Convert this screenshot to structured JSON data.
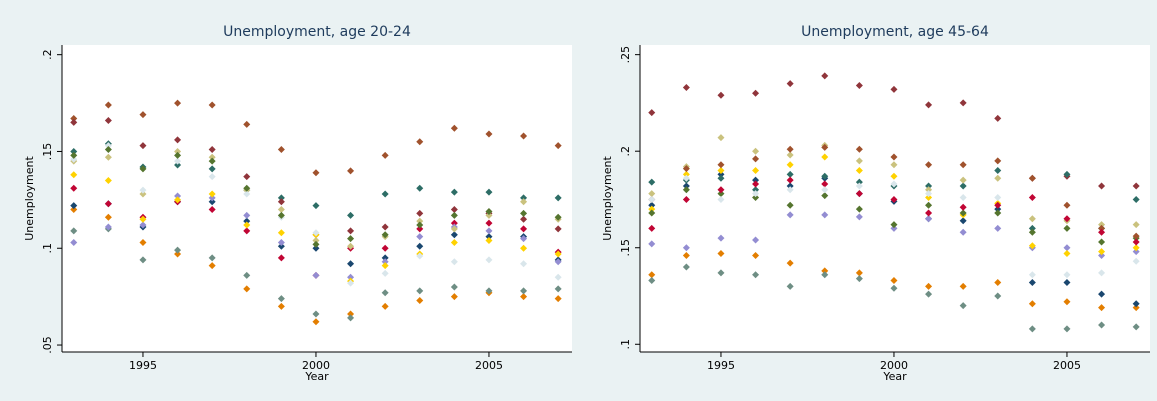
{
  "chart_data": [
    {
      "type": "scatter",
      "title": "Unemployment, age 20-24",
      "x_label": "Year",
      "y_label": "Unemployment",
      "x": [
        1993,
        1994,
        1995,
        1996,
        1997,
        1998,
        1999,
        2000,
        2001,
        2002,
        2003,
        2004,
        2005,
        2006,
        2007
      ],
      "xlim": [
        1992.66,
        2007.4
      ],
      "xticks": [
        1995,
        2000,
        2005
      ],
      "ylim": [
        0.0464,
        0.205
      ],
      "yticks": [
        {
          "value": 0.05,
          "label": ".05"
        },
        {
          "value": 0.1,
          "label": ".1"
        },
        {
          "value": 0.15,
          "label": ".15"
        },
        {
          "value": 0.2,
          "label": ".2"
        }
      ],
      "series": [
        {
          "color": "#a0522d",
          "values": [
            0.167,
            0.174,
            0.169,
            0.175,
            0.174,
            0.164,
            0.151,
            0.139,
            0.14,
            0.148,
            0.155,
            0.162,
            0.159,
            0.158,
            0.153
          ]
        },
        {
          "color": "#e37e00",
          "values": [
            0.12,
            0.116,
            0.103,
            0.097,
            0.091,
            0.079,
            0.07,
            0.062,
            0.066,
            0.07,
            0.073,
            0.075,
            0.077,
            0.075,
            0.074
          ]
        },
        {
          "color": "#6e8e84",
          "values": [
            0.109,
            0.11,
            0.094,
            0.099,
            0.095,
            0.086,
            0.074,
            0.066,
            0.064,
            0.077,
            0.078,
            0.08,
            0.078,
            0.078,
            0.079
          ]
        },
        {
          "color": "#2d6d66",
          "values": [
            0.15,
            0.154,
            0.142,
            0.143,
            0.141,
            0.13,
            0.126,
            0.122,
            0.117,
            0.128,
            0.131,
            0.129,
            0.129,
            0.126,
            0.126
          ]
        },
        {
          "color": "#1a476f",
          "values": [
            0.122,
            0.123,
            0.111,
            0.124,
            0.124,
            0.114,
            0.101,
            0.1,
            0.092,
            0.095,
            0.101,
            0.107,
            0.106,
            0.106,
            0.094
          ]
        },
        {
          "color": "#90353b",
          "values": [
            0.165,
            0.166,
            0.153,
            0.156,
            0.151,
            0.137,
            0.124,
            0.107,
            0.109,
            0.111,
            0.118,
            0.12,
            0.118,
            0.115,
            0.11
          ]
        },
        {
          "color": "#c10534",
          "values": [
            0.131,
            0.123,
            0.116,
            0.124,
            0.12,
            0.109,
            0.095,
            0.086,
            0.1,
            0.1,
            0.11,
            0.113,
            0.113,
            0.11,
            0.098
          ]
        },
        {
          "color": "#938dd2",
          "values": [
            0.103,
            0.111,
            0.112,
            0.127,
            0.126,
            0.117,
            0.103,
            0.086,
            0.085,
            0.093,
            0.106,
            0.111,
            0.109,
            0.105,
            0.093
          ]
        },
        {
          "color": "#ffd200",
          "values": [
            0.138,
            0.135,
            0.115,
            0.125,
            0.128,
            0.112,
            0.108,
            0.107,
            0.083,
            0.091,
            0.097,
            0.103,
            0.104,
            0.1,
            0.097
          ]
        },
        {
          "color": "#cac27e",
          "values": [
            0.145,
            0.147,
            0.128,
            0.15,
            0.147,
            0.13,
            0.12,
            0.104,
            0.101,
            0.106,
            0.114,
            0.11,
            0.117,
            0.124,
            0.115
          ]
        },
        {
          "color": "#d9e6eb",
          "values": [
            0.146,
            0.153,
            0.13,
            0.145,
            0.137,
            0.128,
            0.116,
            0.108,
            0.082,
            0.087,
            0.096,
            0.093,
            0.094,
            0.092,
            0.085
          ]
        },
        {
          "color": "#55752f",
          "values": [
            0.148,
            0.151,
            0.141,
            0.148,
            0.145,
            0.131,
            0.117,
            0.102,
            0.105,
            0.107,
            0.112,
            0.117,
            0.119,
            0.118,
            0.116
          ]
        }
      ]
    },
    {
      "type": "scatter",
      "title": "Unemployment, age 45-64",
      "x_label": "Year",
      "y_label": "Unemployment",
      "x": [
        1993,
        1994,
        1995,
        1996,
        1997,
        1998,
        1999,
        2000,
        2001,
        2002,
        2003,
        2004,
        2005,
        2006,
        2007
      ],
      "xlim": [
        1992.66,
        2007.4
      ],
      "xticks": [
        1995,
        2000,
        2005
      ],
      "ylim": [
        0.096,
        0.255
      ],
      "yticks": [
        {
          "value": 0.1,
          "label": ".1"
        },
        {
          "value": 0.15,
          "label": ".15"
        },
        {
          "value": 0.2,
          "label": ".2"
        },
        {
          "value": 0.25,
          "label": ".25"
        }
      ],
      "series": [
        {
          "color": "#90353b",
          "values": [
            0.22,
            0.233,
            0.229,
            0.23,
            0.235,
            0.239,
            0.234,
            0.232,
            0.224,
            0.225,
            0.217,
            0.186,
            0.187,
            0.182,
            0.182
          ]
        },
        {
          "color": "#e37e00",
          "values": [
            0.136,
            0.146,
            0.147,
            0.146,
            0.142,
            0.138,
            0.137,
            0.133,
            0.13,
            0.13,
            0.132,
            0.121,
            0.122,
            0.119,
            0.119
          ]
        },
        {
          "color": "#6e8e84",
          "values": [
            0.133,
            0.14,
            0.137,
            0.136,
            0.13,
            0.136,
            0.134,
            0.129,
            0.126,
            0.12,
            0.125,
            0.108,
            0.108,
            0.11,
            0.109
          ]
        },
        {
          "color": "#1a476f",
          "values": [
            0.172,
            0.182,
            0.188,
            0.185,
            0.182,
            0.186,
            0.178,
            0.174,
            0.165,
            0.164,
            0.17,
            0.132,
            0.132,
            0.126,
            0.121
          ]
        },
        {
          "color": "#938dd2",
          "values": [
            0.152,
            0.15,
            0.155,
            0.154,
            0.167,
            0.167,
            0.166,
            0.16,
            0.165,
            0.158,
            0.16,
            0.15,
            0.15,
            0.146,
            0.148
          ]
        },
        {
          "color": "#2d6d66",
          "values": [
            0.184,
            0.185,
            0.186,
            0.18,
            0.188,
            0.187,
            0.184,
            0.182,
            0.182,
            0.182,
            0.19,
            0.16,
            0.188,
            0.16,
            0.175
          ]
        },
        {
          "color": "#ffd200",
          "values": [
            0.17,
            0.188,
            0.19,
            0.19,
            0.193,
            0.197,
            0.19,
            0.187,
            0.176,
            0.167,
            0.173,
            0.151,
            0.147,
            0.148,
            0.15
          ]
        },
        {
          "color": "#cac27e",
          "values": [
            0.178,
            0.192,
            0.207,
            0.2,
            0.198,
            0.203,
            0.195,
            0.193,
            0.18,
            0.185,
            0.186,
            0.165,
            0.164,
            0.162,
            0.162
          ]
        },
        {
          "color": "#55752f",
          "values": [
            0.168,
            0.18,
            0.178,
            0.176,
            0.172,
            0.177,
            0.17,
            0.162,
            0.172,
            0.168,
            0.168,
            0.158,
            0.16,
            0.153,
            0.155
          ]
        },
        {
          "color": "#a0522d",
          "values": [
            0.175,
            0.191,
            0.193,
            0.196,
            0.201,
            0.202,
            0.201,
            0.197,
            0.193,
            0.193,
            0.195,
            0.186,
            0.172,
            0.16,
            0.156
          ]
        },
        {
          "color": "#c10534",
          "values": [
            0.16,
            0.175,
            0.18,
            0.183,
            0.185,
            0.183,
            0.178,
            0.175,
            0.168,
            0.171,
            0.172,
            0.176,
            0.165,
            0.158,
            0.153
          ]
        },
        {
          "color": "#d9e6eb",
          "values": [
            0.175,
            0.186,
            0.175,
            0.178,
            0.18,
            0.18,
            0.182,
            0.183,
            0.178,
            0.176,
            0.176,
            0.136,
            0.136,
            0.137,
            0.143
          ]
        }
      ]
    }
  ]
}
